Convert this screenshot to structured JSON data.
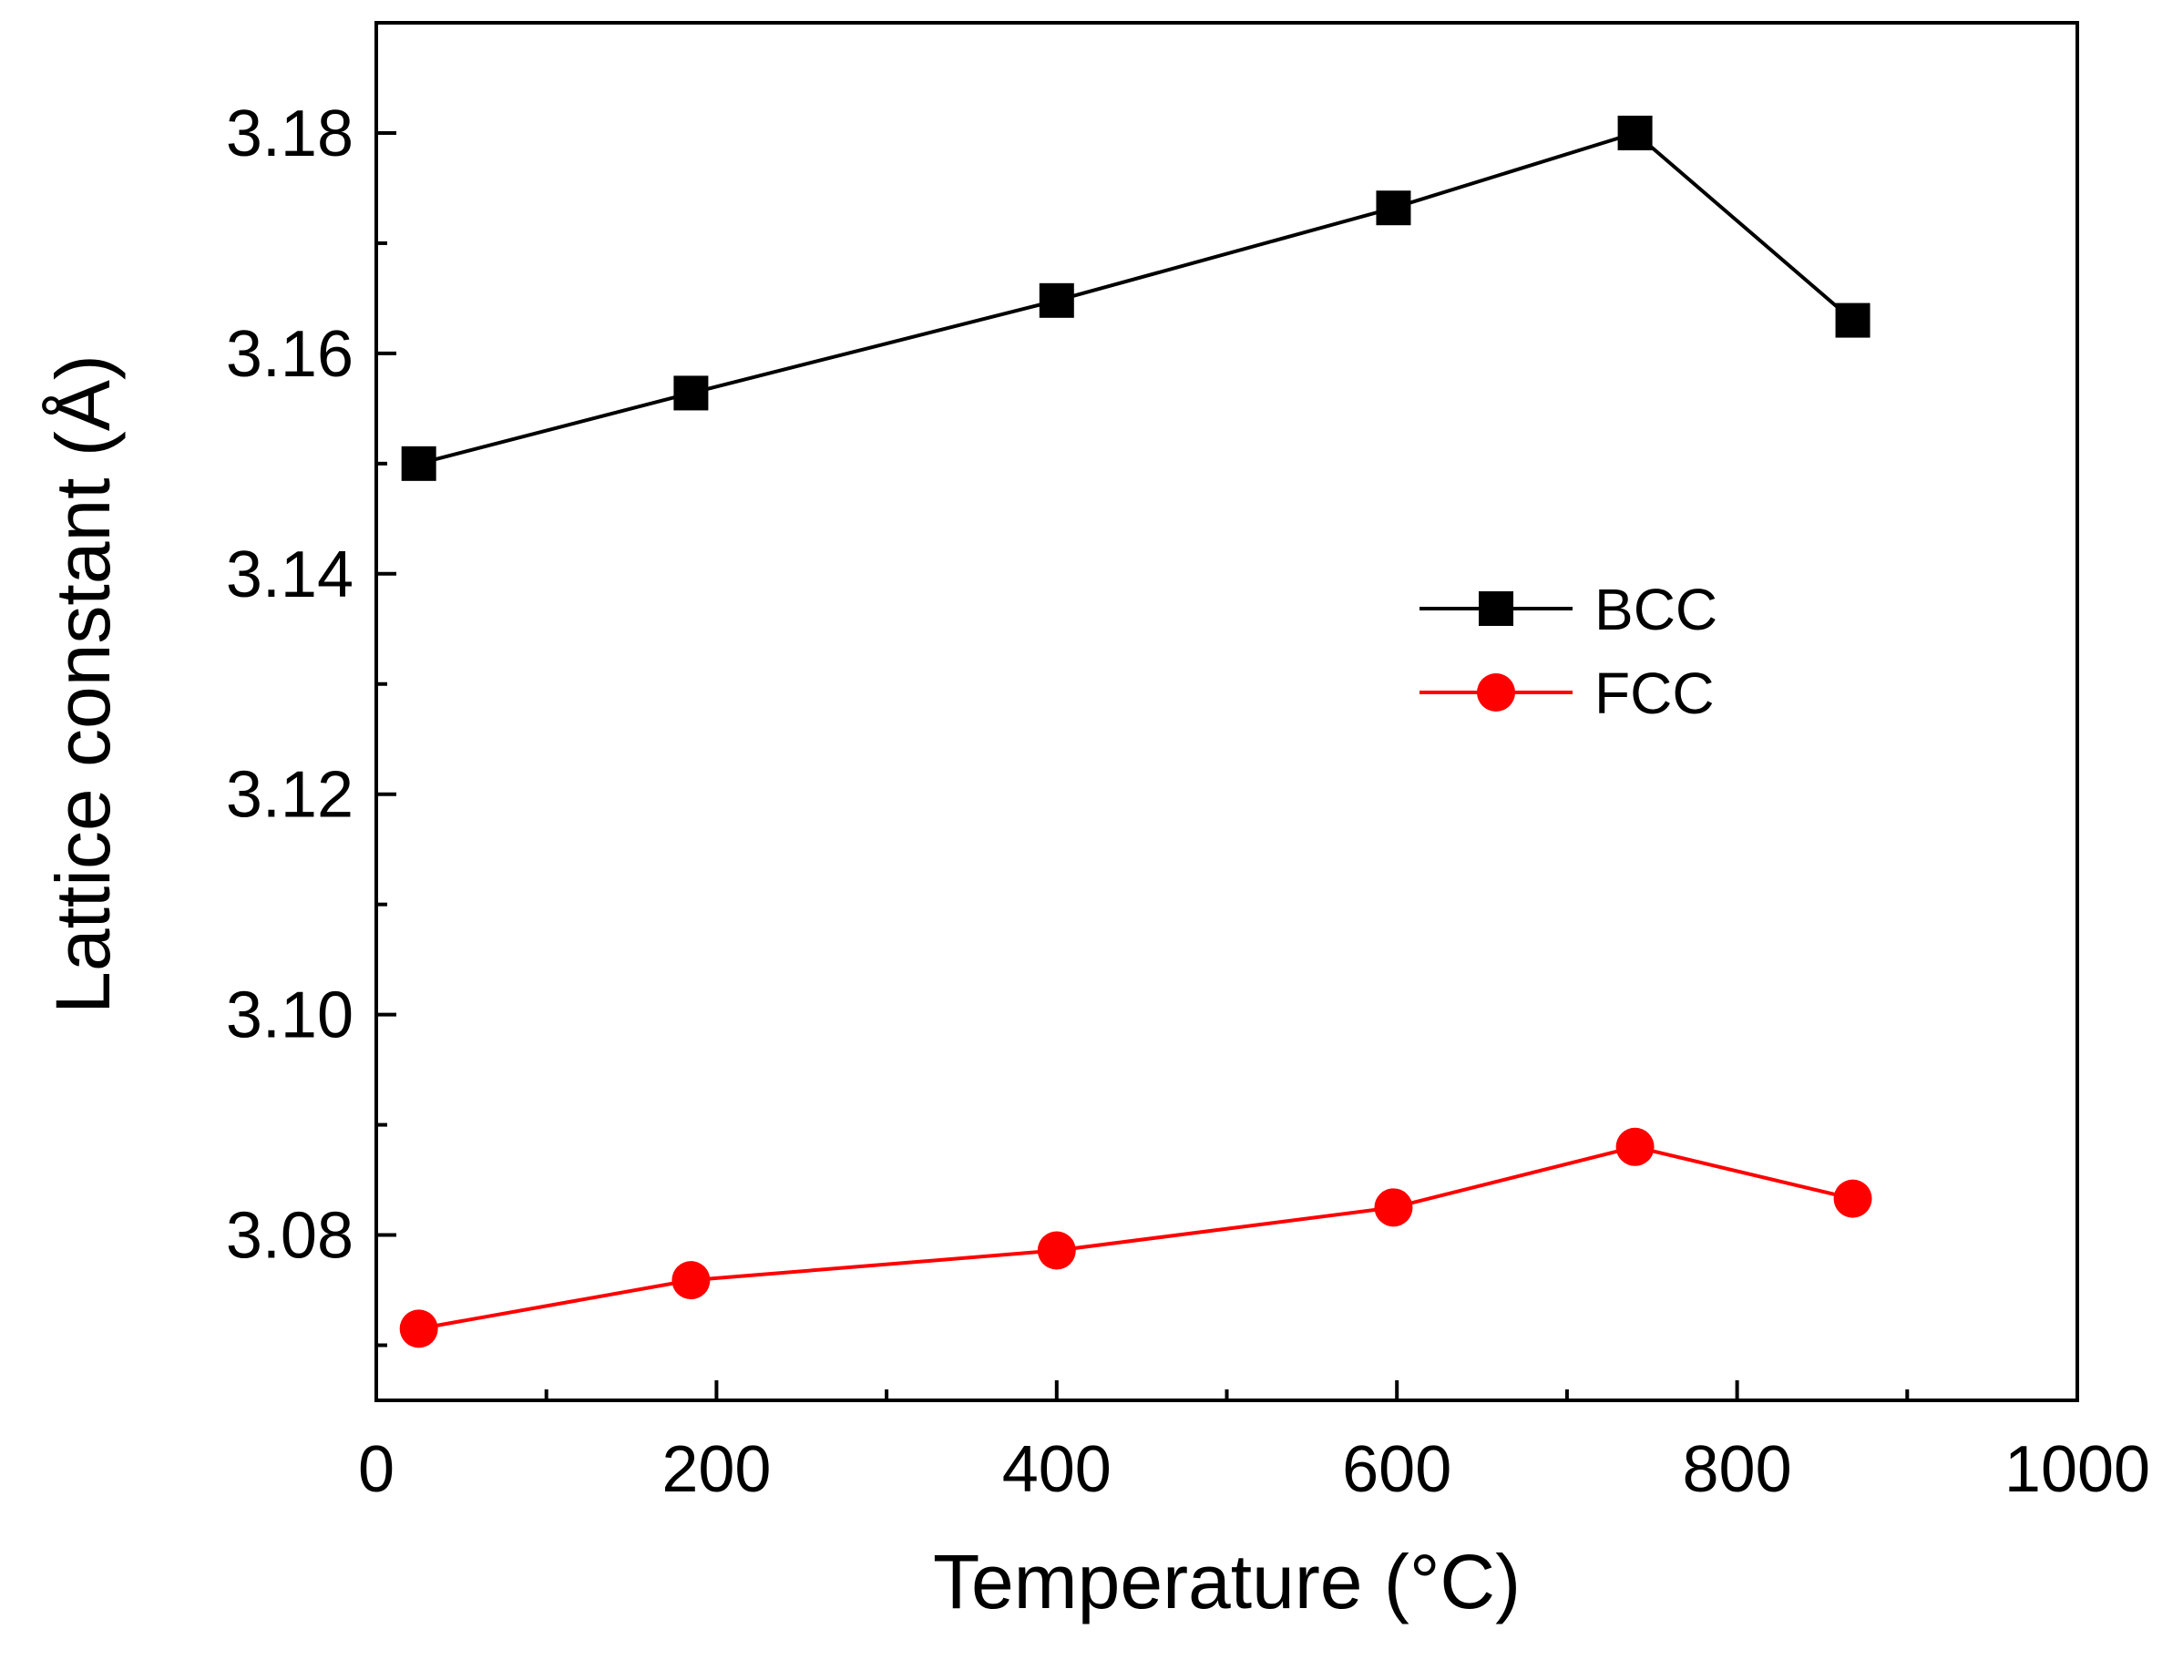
{
  "chart_data": {
    "type": "line",
    "title": "",
    "xlabel": "Temperature (°C)",
    "ylabel": "Lattice constant  (Å)",
    "xlim": [
      0,
      1000
    ],
    "ylim": [
      3.065,
      3.19
    ],
    "x_major_ticks": [
      0,
      200,
      400,
      600,
      800,
      1000
    ],
    "x_tick_labels": [
      "0",
      "200",
      "400",
      "600",
      "800",
      "1000"
    ],
    "x_minor_ticks": [
      100,
      300,
      500,
      700,
      900
    ],
    "y_major_ticks": [
      3.08,
      3.1,
      3.12,
      3.14,
      3.16,
      3.18
    ],
    "y_tick_labels": [
      "3.08",
      "3.10",
      "3.12",
      "3.14",
      "3.16",
      "3.18"
    ],
    "y_minor_ticks": [
      3.07,
      3.09,
      3.11,
      3.13,
      3.15,
      3.17
    ],
    "grid": false,
    "legend_position": "center-right",
    "series": [
      {
        "name": "BCC",
        "color": "#000000",
        "marker": "square",
        "x": [
          25,
          185,
          400,
          598,
          740,
          868
        ],
        "y": [
          3.15,
          3.1564,
          3.1648,
          3.1732,
          3.18,
          3.163
        ]
      },
      {
        "name": "FCC",
        "color": "#ff0000",
        "marker": "circle",
        "x": [
          25,
          185,
          400,
          598,
          740,
          868
        ],
        "y": [
          3.0715,
          3.0759,
          3.0786,
          3.0825,
          3.088,
          3.0833
        ]
      }
    ]
  }
}
